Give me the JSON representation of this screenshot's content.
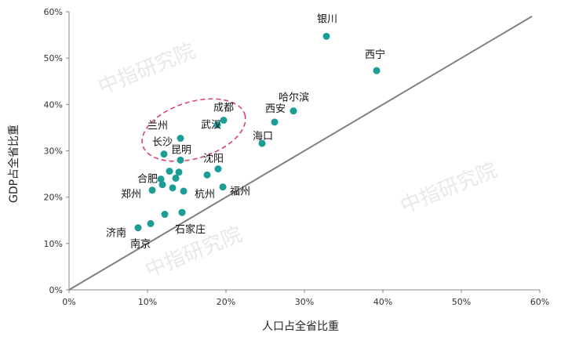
{
  "chart_data": {
    "type": "scatter",
    "xlabel": "人口占全省比重",
    "ylabel": "GDP占全省比重",
    "xlim": [
      0,
      60
    ],
    "ylim": [
      0,
      60
    ],
    "x_ticks": [
      "0%",
      "10%",
      "20%",
      "30%",
      "40%",
      "50%",
      "60%"
    ],
    "y_ticks": [
      "0%",
      "10%",
      "20%",
      "30%",
      "40%",
      "50%",
      "60%"
    ],
    "grid": false,
    "point_color": "#1a9e96",
    "line_color": "#808080",
    "highlight_color": "#d6456b",
    "reference_line": {
      "x": [
        0,
        59
      ],
      "y": [
        0,
        59
      ]
    },
    "points": [
      {
        "label": "银川",
        "x": 32.8,
        "y": 54.7
      },
      {
        "label": "西宁",
        "x": 39.2,
        "y": 47.3
      },
      {
        "label": "哈尔滨",
        "x": 28.6,
        "y": 38.6
      },
      {
        "label": "成都",
        "x": 19.7,
        "y": 36.6
      },
      {
        "label": "武汉",
        "x": 18.9,
        "y": 35.6
      },
      {
        "label": "西安",
        "x": 26.2,
        "y": 36.2
      },
      {
        "label": "海口",
        "x": 24.6,
        "y": 31.6
      },
      {
        "label": "兰州",
        "x": 14.2,
        "y": 32.7
      },
      {
        "label": "长沙",
        "x": 12.1,
        "y": 29.3
      },
      {
        "label": "昆明",
        "x": 14.2,
        "y": 28.0
      },
      {
        "label": "沈阳",
        "x": 19.0,
        "y": 26.1
      },
      {
        "label": "",
        "x": 17.6,
        "y": 24.8
      },
      {
        "label": "",
        "x": 12.8,
        "y": 25.6
      },
      {
        "label": "",
        "x": 14.0,
        "y": 25.4
      },
      {
        "label": "合肥",
        "x": 11.7,
        "y": 23.9
      },
      {
        "label": "",
        "x": 13.6,
        "y": 24.1
      },
      {
        "label": "",
        "x": 11.9,
        "y": 22.7
      },
      {
        "label": "",
        "x": 13.2,
        "y": 22.0
      },
      {
        "label": "杭州",
        "x": 14.6,
        "y": 21.3
      },
      {
        "label": "郑州",
        "x": 10.6,
        "y": 21.5
      },
      {
        "label": "福州",
        "x": 19.6,
        "y": 22.2
      },
      {
        "label": "",
        "x": 14.4,
        "y": 16.7
      },
      {
        "label": "",
        "x": 12.2,
        "y": 16.3
      },
      {
        "label": "石家庄",
        "x": 14.4,
        "y": 16.7
      },
      {
        "label": "济南",
        "x": 8.8,
        "y": 13.4
      },
      {
        "label": "南京",
        "x": 10.4,
        "y": 14.3
      }
    ]
  },
  "watermark": "中指研究院"
}
